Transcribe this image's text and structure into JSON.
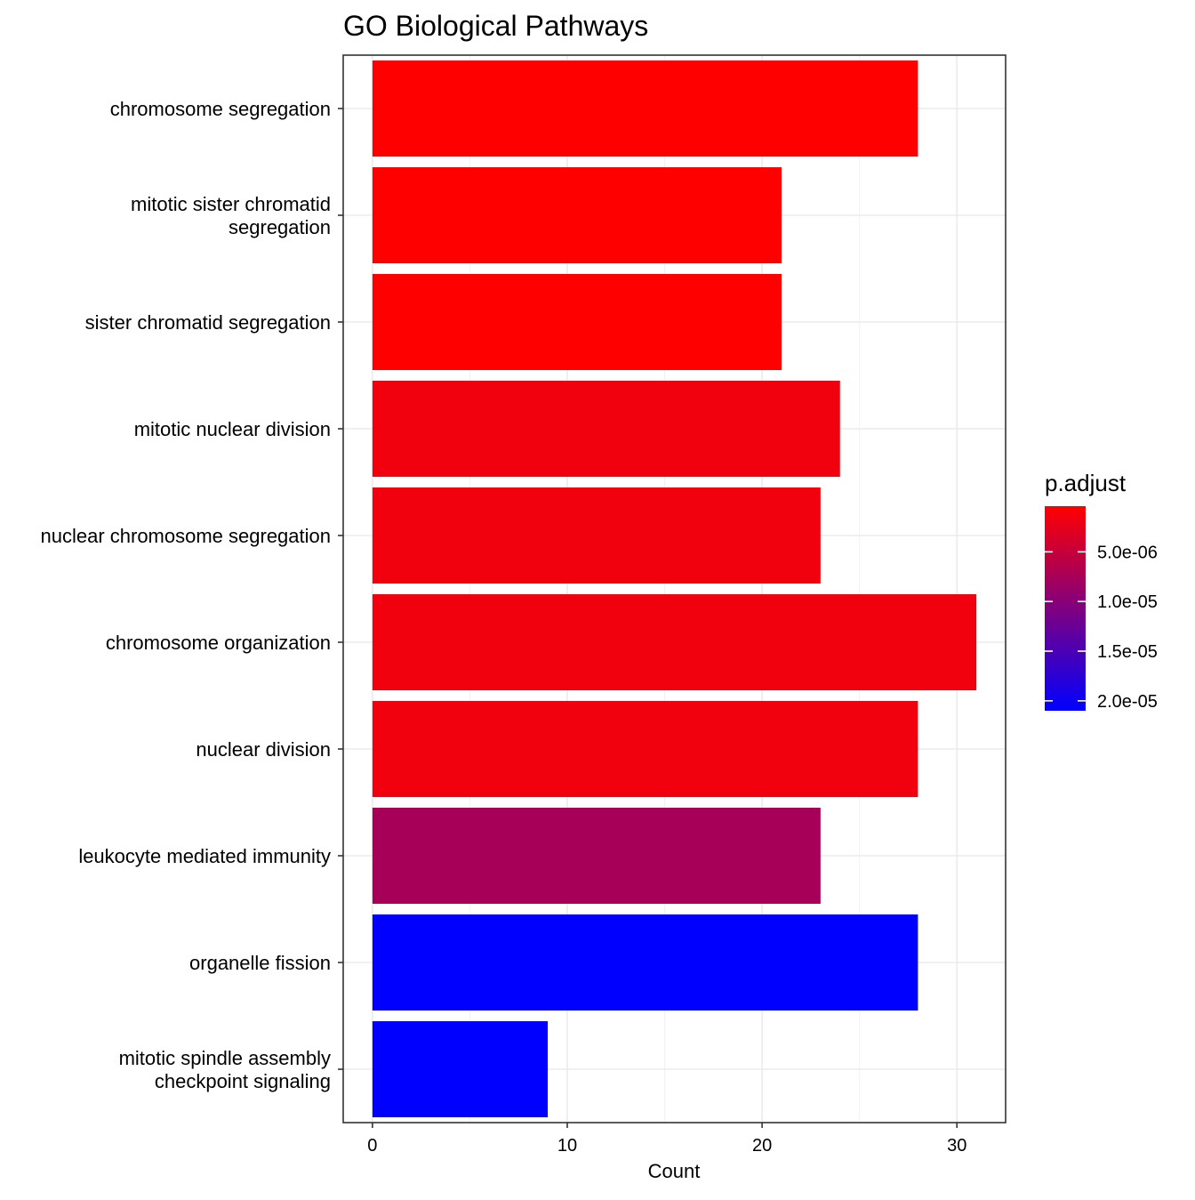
{
  "chart_data": {
    "type": "bar",
    "orientation": "horizontal",
    "title": "GO Biological Pathways",
    "xlabel": "Count",
    "ylabel": "",
    "xlim": [
      -1.5,
      32.5
    ],
    "xticks": [
      0,
      10,
      20,
      30
    ],
    "grid": true,
    "categories": [
      [
        "chromosome segregation"
      ],
      [
        "mitotic sister chromatid",
        "segregation"
      ],
      [
        "sister chromatid segregation"
      ],
      [
        "mitotic nuclear division"
      ],
      [
        "nuclear chromosome segregation"
      ],
      [
        "chromosome organization"
      ],
      [
        "nuclear division"
      ],
      [
        "leukocyte mediated immunity"
      ],
      [
        "organelle fission"
      ],
      [
        "mitotic spindle assembly",
        "checkpoint signaling"
      ]
    ],
    "values": [
      28,
      21,
      21,
      24,
      23,
      31,
      28,
      23,
      28,
      9
    ],
    "p_adjust": [
      4e-07,
      4e-07,
      4e-07,
      1.5e-06,
      1.5e-06,
      1.5e-06,
      1.5e-06,
      7.5e-06,
      2.1e-05,
      2.1e-05
    ],
    "legend": {
      "title": "p.adjust",
      "position": "right",
      "min": 4e-07,
      "max": 2.1e-05,
      "low_color": "#ff0000",
      "high_color": "#0000ff",
      "breaks": [
        5e-06,
        1e-05,
        1.5e-05,
        2e-05
      ],
      "labels": [
        "5.0e-06",
        "1.0e-05",
        "1.5e-05",
        "2.0e-05"
      ]
    }
  }
}
